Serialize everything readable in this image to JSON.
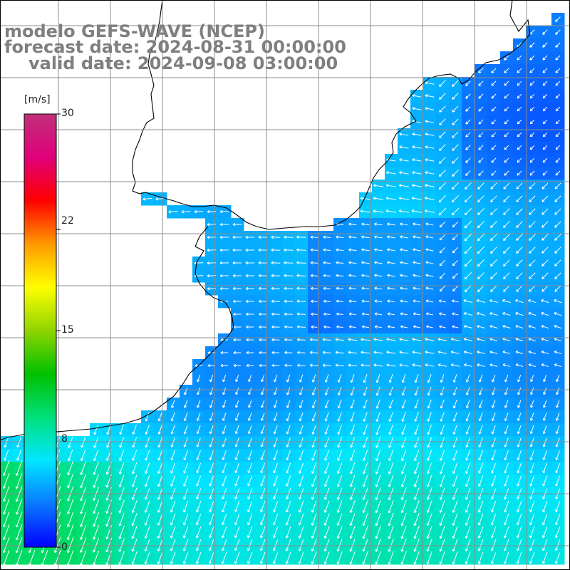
{
  "title": {
    "model": "modelo GEFS-WAVE (NCEP)",
    "forecast": "forecast date: 2024-08-31 00:00:00",
    "valid": "valid date: 2024-09-08 03:00:00"
  },
  "colorbar": {
    "unit": "[m/s]",
    "ticks": [
      "30",
      "22",
      "15",
      "8",
      "0"
    ],
    "tick_values": [
      30,
      22,
      15,
      8,
      0
    ],
    "range": [
      0,
      30
    ],
    "colors": [
      "#0000ff",
      "#0a78ff",
      "#00e6ff",
      "#00e07a",
      "#00c000",
      "#8fd400",
      "#ffff00",
      "#ff9900",
      "#ff0000",
      "#e0007a",
      "#c0307a"
    ]
  },
  "map": {
    "field": "wind speed and direction",
    "land_color": "#ffffff",
    "grid_color": "#8c8c8c",
    "coast_color": "#000000",
    "arrow_color": "#ffffff"
  }
}
